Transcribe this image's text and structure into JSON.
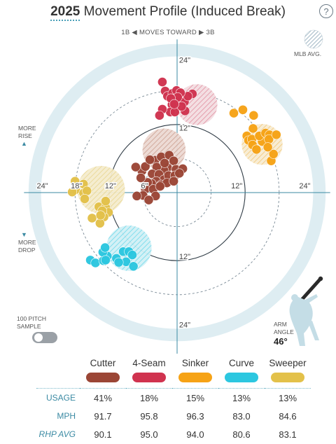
{
  "header": {
    "year": "2025",
    "title": "Movement Profile (Induced Break)",
    "help_label": "?",
    "direction": "1B ◀  MOVES TOWARD  ▶ 3B",
    "mlb_avg_label": "MLB AVG."
  },
  "labels": {
    "more_rise": [
      "MORE",
      "RISE"
    ],
    "more_drop": [
      "MORE",
      "DROP"
    ],
    "toggle_label": [
      "100 PITCH",
      "SAMPLE"
    ],
    "arm_angle_label": [
      "ARM",
      "ANGLE"
    ],
    "arm_angle_value": "46°"
  },
  "table": {
    "pitches": [
      "Cutter",
      "4-Seam",
      "Sinker",
      "Curve",
      "Sweeper"
    ],
    "rows": [
      {
        "label": "USAGE",
        "values": [
          "41%",
          "18%",
          "15%",
          "13%",
          "13%"
        ]
      },
      {
        "label": "MPH",
        "values": [
          "91.7",
          "95.8",
          "96.3",
          "83.0",
          "84.6"
        ]
      },
      {
        "label": "RHP AVG",
        "values": [
          "90.1",
          "95.0",
          "94.0",
          "80.6",
          "83.1"
        ]
      }
    ]
  },
  "chart_data": {
    "type": "scatter",
    "title": "Movement Profile (Induced Break)",
    "xlim": [
      -24,
      24
    ],
    "ylim": [
      -24,
      24
    ],
    "unit": "in",
    "ring_labels": [
      "6\"",
      "12\"",
      "18\"",
      "24\""
    ],
    "axis_tick_labels": {
      "left": [
        "24\"",
        "18\"",
        "12\"",
        "6\""
      ],
      "right": [
        "12\"",
        "24\""
      ],
      "top": [
        "24\"",
        "12\""
      ],
      "bottom": [
        "12\"",
        "24\""
      ]
    },
    "colors": {
      "Cutter": "#9b4636",
      "4-Seam": "#d0334f",
      "Sinker": "#f6a316",
      "Curve": "#2cc7e0",
      "Sweeper": "#e3c14a",
      "mlb_avg": "#b9c9d3",
      "field": "#deedf2"
    },
    "mlb_avg": [
      {
        "pitch": "4-Seam",
        "x": 3.5,
        "y": 15.5,
        "r": 3.6
      },
      {
        "pitch": "Sinker",
        "x": 15,
        "y": 8.5,
        "r": 3.6
      },
      {
        "pitch": "Cutter",
        "x": -2.3,
        "y": 7.5,
        "r": 3.8
      },
      {
        "pitch": "Sweeper",
        "x": -13.4,
        "y": 0.5,
        "r": 4.2
      },
      {
        "pitch": "Curve",
        "x": -8.5,
        "y": -9.8,
        "r": 4.0
      }
    ],
    "series": [
      {
        "name": "4-Seam",
        "points": [
          [
            -2.6,
            19.5
          ],
          [
            -2.1,
            17.9
          ],
          [
            -1.7,
            17.0
          ],
          [
            -0.8,
            17.5
          ],
          [
            -0.1,
            18.0
          ],
          [
            0.4,
            16.4
          ],
          [
            1.3,
            16.0
          ],
          [
            -0.9,
            15.5
          ],
          [
            -1.2,
            14.2
          ],
          [
            -2.6,
            14.7
          ],
          [
            -3.1,
            13.6
          ],
          [
            -0.4,
            14.2
          ],
          [
            1.4,
            14.4
          ],
          [
            2.7,
            17.4
          ],
          [
            1.9,
            17.0
          ],
          [
            0.6,
            17.6
          ],
          [
            0.1,
            16.8
          ],
          [
            -1.1,
            16.6
          ],
          [
            0.8,
            15.2
          ],
          [
            -0.5,
            15.6
          ]
        ]
      },
      {
        "name": "Sinker",
        "points": [
          [
            10.0,
            14.0
          ],
          [
            11.6,
            14.6
          ],
          [
            13.5,
            13.6
          ],
          [
            13.4,
            11.3
          ],
          [
            12.3,
            10.0
          ],
          [
            12.6,
            9.2
          ],
          [
            13.2,
            9.4
          ],
          [
            13.3,
            8.4
          ],
          [
            14.0,
            7.6
          ],
          [
            15.0,
            9.0
          ],
          [
            14.5,
            10.0
          ],
          [
            15.6,
            10.5
          ],
          [
            16.3,
            10.2
          ],
          [
            16.2,
            9.4
          ],
          [
            17.5,
            10.2
          ],
          [
            16.6,
            5.6
          ],
          [
            17.0,
            6.8
          ],
          [
            16.0,
            8.0
          ]
        ]
      },
      {
        "name": "Cutter",
        "points": [
          [
            -3.9,
            5.7
          ],
          [
            -2.8,
            6.3
          ],
          [
            -1.4,
            6.6
          ],
          [
            -0.6,
            5.6
          ],
          [
            -1.7,
            4.4
          ],
          [
            -0.2,
            4.1
          ],
          [
            1.0,
            4.2
          ],
          [
            -2.3,
            3.9
          ],
          [
            -3.6,
            4.5
          ],
          [
            -4.4,
            3.3
          ],
          [
            -3.2,
            3.2
          ],
          [
            -2.3,
            2.3
          ],
          [
            -1.5,
            3.0
          ],
          [
            -0.4,
            3.0
          ],
          [
            -3.7,
            2.0
          ],
          [
            -4.5,
            1.6
          ],
          [
            -5.2,
            1.8
          ],
          [
            -2.8,
            1.4
          ],
          [
            -1.8,
            1.7
          ],
          [
            -2.2,
            5.2
          ],
          [
            -0.6,
            2.0
          ],
          [
            -6.2,
            3.8
          ],
          [
            -7.3,
            4.5
          ],
          [
            -6.4,
            2.6
          ],
          [
            -5.6,
            0.6
          ],
          [
            -4.2,
            0.6
          ],
          [
            -3.8,
            -0.6
          ],
          [
            -6.0,
            -0.5
          ],
          [
            -5.0,
            -1.3
          ],
          [
            -7.1,
            -0.6
          ],
          [
            -5.6,
            4.6
          ],
          [
            -4.8,
            5.8
          ],
          [
            -3.0,
            1.1
          ],
          [
            0.4,
            3.4
          ]
        ]
      },
      {
        "name": "Sweeper",
        "points": [
          [
            -18.0,
            2.0
          ],
          [
            -16.5,
            1.5
          ],
          [
            -17.9,
            0.5
          ],
          [
            -16.5,
            -0.1
          ],
          [
            -15.9,
            0.3
          ],
          [
            -18.5,
            0.1
          ],
          [
            -16.3,
            -1.1
          ],
          [
            -15.0,
            -4.5
          ],
          [
            -13.8,
            -2.5
          ],
          [
            -12.6,
            -2.6
          ],
          [
            -12.1,
            -3.5
          ],
          [
            -12.9,
            -4.3
          ],
          [
            -13.6,
            -5.4
          ],
          [
            -12.6,
            -1.5
          ],
          [
            -13.2,
            -3.2
          ],
          [
            -13.5,
            -4.0
          ]
        ]
      },
      {
        "name": "Curve",
        "points": [
          [
            -15.3,
            -11.9
          ],
          [
            -14.4,
            -12.4
          ],
          [
            -13.0,
            -12.0
          ],
          [
            -12.3,
            -11.2
          ],
          [
            -13.1,
            -10.5
          ],
          [
            -12.7,
            -9.7
          ],
          [
            -10.7,
            -11.6
          ],
          [
            -12.6,
            -11.9
          ],
          [
            -9.5,
            -10.4
          ],
          [
            -8.5,
            -10.4
          ],
          [
            -7.9,
            -11.0
          ],
          [
            -9.0,
            -12.2
          ],
          [
            -7.7,
            -13.0
          ],
          [
            -10.3,
            -12.3
          ]
        ]
      }
    ]
  }
}
